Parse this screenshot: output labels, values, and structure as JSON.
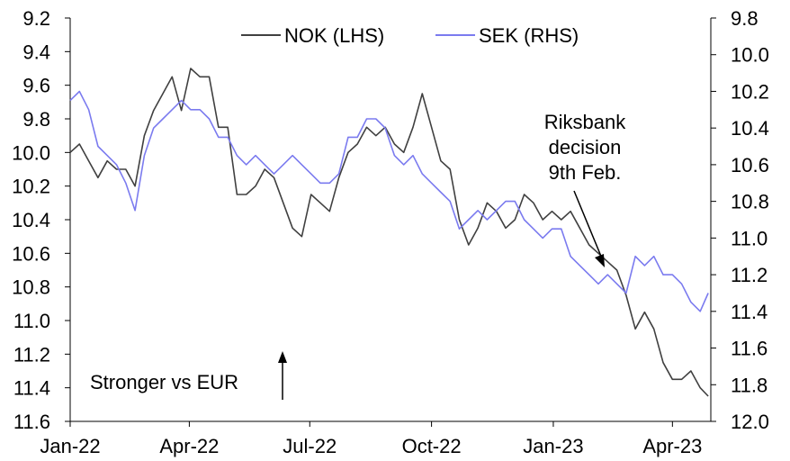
{
  "chart_data": {
    "type": "line",
    "title": "",
    "xlabel": "",
    "ylabel": "",
    "legend_position": "top-center",
    "grid": false,
    "x_ticks": [
      "Jan-22",
      "Apr-22",
      "Jul-22",
      "Oct-22",
      "Jan-23",
      "Apr-23"
    ],
    "x_range": [
      "2022-01-01",
      "2023-04-30"
    ],
    "y_left": {
      "inverted": true,
      "range": [
        9.2,
        11.6
      ],
      "ticks": [
        "9.2",
        "9.4",
        "9.6",
        "9.8",
        "10.0",
        "10.2",
        "10.4",
        "10.6",
        "10.8",
        "11.0",
        "11.2",
        "11.4",
        "11.6"
      ]
    },
    "y_right": {
      "inverted": true,
      "range": [
        9.8,
        12.0
      ],
      "ticks": [
        "9.8",
        "10.0",
        "10.2",
        "10.4",
        "10.6",
        "10.8",
        "11.0",
        "11.2",
        "11.4",
        "11.6",
        "11.8",
        "12.0"
      ]
    },
    "series": [
      {
        "name": "NOK (LHS)",
        "axis": "left",
        "color": "#404040",
        "x": [
          "2022-01-01",
          "2022-01-08",
          "2022-01-15",
          "2022-01-22",
          "2022-01-29",
          "2022-02-05",
          "2022-02-12",
          "2022-02-19",
          "2022-02-26",
          "2022-03-05",
          "2022-03-12",
          "2022-03-19",
          "2022-03-26",
          "2022-04-02",
          "2022-04-09",
          "2022-04-16",
          "2022-04-23",
          "2022-04-30",
          "2022-05-07",
          "2022-05-14",
          "2022-05-21",
          "2022-05-28",
          "2022-06-04",
          "2022-06-11",
          "2022-06-18",
          "2022-06-25",
          "2022-07-02",
          "2022-07-09",
          "2022-07-16",
          "2022-07-23",
          "2022-07-30",
          "2022-08-06",
          "2022-08-13",
          "2022-08-20",
          "2022-08-27",
          "2022-09-03",
          "2022-09-10",
          "2022-09-17",
          "2022-09-24",
          "2022-10-01",
          "2022-10-08",
          "2022-10-15",
          "2022-10-22",
          "2022-10-29",
          "2022-11-05",
          "2022-11-12",
          "2022-11-19",
          "2022-11-26",
          "2022-12-03",
          "2022-12-10",
          "2022-12-17",
          "2022-12-24",
          "2022-12-31",
          "2023-01-07",
          "2023-01-14",
          "2023-01-21",
          "2023-01-28",
          "2023-02-04",
          "2023-02-11",
          "2023-02-18",
          "2023-02-25",
          "2023-03-04",
          "2023-03-11",
          "2023-03-18",
          "2023-03-25",
          "2023-04-01",
          "2023-04-08",
          "2023-04-15",
          "2023-04-22",
          "2023-04-28"
        ],
        "values": [
          10.0,
          9.95,
          10.05,
          10.15,
          10.05,
          10.1,
          10.1,
          10.2,
          9.9,
          9.75,
          9.65,
          9.55,
          9.75,
          9.5,
          9.55,
          9.55,
          9.85,
          9.85,
          10.25,
          10.25,
          10.2,
          10.1,
          10.15,
          10.3,
          10.45,
          10.5,
          10.25,
          10.3,
          10.35,
          10.15,
          10.0,
          9.95,
          9.85,
          9.9,
          9.85,
          9.95,
          10.0,
          9.85,
          9.65,
          9.85,
          10.05,
          10.1,
          10.4,
          10.55,
          10.45,
          10.3,
          10.35,
          10.45,
          10.4,
          10.25,
          10.3,
          10.4,
          10.35,
          10.4,
          10.35,
          10.45,
          10.55,
          10.6,
          10.65,
          10.7,
          10.85,
          11.05,
          10.95,
          11.05,
          11.25,
          11.35,
          11.35,
          11.3,
          11.4,
          11.45
        ]
      },
      {
        "name": "SEK (RHS)",
        "axis": "right",
        "color": "#7b7bef",
        "x": [
          "2022-01-01",
          "2022-01-08",
          "2022-01-15",
          "2022-01-22",
          "2022-01-29",
          "2022-02-05",
          "2022-02-12",
          "2022-02-19",
          "2022-02-26",
          "2022-03-05",
          "2022-03-12",
          "2022-03-19",
          "2022-03-26",
          "2022-04-02",
          "2022-04-09",
          "2022-04-16",
          "2022-04-23",
          "2022-04-30",
          "2022-05-07",
          "2022-05-14",
          "2022-05-21",
          "2022-05-28",
          "2022-06-04",
          "2022-06-11",
          "2022-06-18",
          "2022-06-25",
          "2022-07-02",
          "2022-07-09",
          "2022-07-16",
          "2022-07-23",
          "2022-07-30",
          "2022-08-06",
          "2022-08-13",
          "2022-08-20",
          "2022-08-27",
          "2022-09-03",
          "2022-09-10",
          "2022-09-17",
          "2022-09-24",
          "2022-10-01",
          "2022-10-08",
          "2022-10-15",
          "2022-10-22",
          "2022-10-29",
          "2022-11-05",
          "2022-11-12",
          "2022-11-19",
          "2022-11-26",
          "2022-12-03",
          "2022-12-10",
          "2022-12-17",
          "2022-12-24",
          "2022-12-31",
          "2023-01-07",
          "2023-01-14",
          "2023-01-21",
          "2023-01-28",
          "2023-02-04",
          "2023-02-11",
          "2023-02-18",
          "2023-02-25",
          "2023-03-04",
          "2023-03-11",
          "2023-03-18",
          "2023-03-25",
          "2023-04-01",
          "2023-04-08",
          "2023-04-15",
          "2023-04-22",
          "2023-04-28"
        ],
        "values": [
          10.25,
          10.2,
          10.3,
          10.5,
          10.55,
          10.6,
          10.7,
          10.85,
          10.55,
          10.4,
          10.35,
          10.3,
          10.25,
          10.3,
          10.3,
          10.35,
          10.45,
          10.45,
          10.55,
          10.6,
          10.55,
          10.6,
          10.65,
          10.6,
          10.55,
          10.6,
          10.65,
          10.7,
          10.7,
          10.65,
          10.45,
          10.45,
          10.35,
          10.35,
          10.4,
          10.55,
          10.6,
          10.55,
          10.65,
          10.7,
          10.75,
          10.8,
          10.95,
          10.9,
          10.85,
          10.9,
          10.85,
          10.8,
          10.8,
          10.9,
          10.95,
          11.0,
          10.95,
          10.95,
          11.1,
          11.15,
          11.2,
          11.25,
          11.2,
          11.25,
          11.3,
          11.1,
          11.15,
          11.1,
          11.2,
          11.2,
          11.25,
          11.35,
          11.4,
          11.3
        ]
      }
    ],
    "annotations": [
      {
        "text_lines": [
          "Riksbank",
          "decision",
          "9th Feb."
        ],
        "target_x": "2023-02-09"
      },
      {
        "text": "Stronger vs EUR"
      }
    ]
  }
}
